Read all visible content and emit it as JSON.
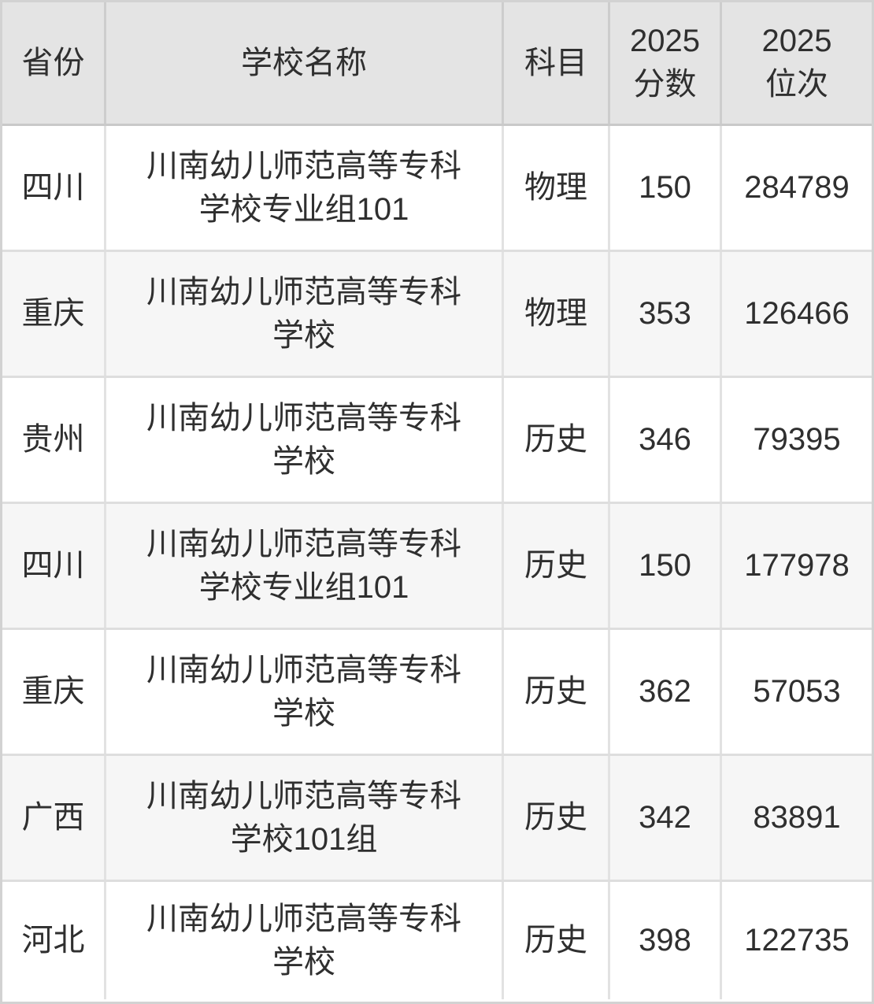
{
  "chart_data": {
    "type": "table",
    "title": "",
    "columns": [
      "省份",
      "学校名称",
      "科目",
      "2025\n分数",
      "2025\n位次"
    ],
    "rows": [
      [
        "四川",
        "川南幼儿师范高等专科\n学校专业组101",
        "物理",
        150,
        284789
      ],
      [
        "重庆",
        "川南幼儿师范高等专科\n学校",
        "物理",
        353,
        126466
      ],
      [
        "贵州",
        "川南幼儿师范高等专科\n学校",
        "历史",
        346,
        79395
      ],
      [
        "四川",
        "川南幼儿师范高等专科\n学校专业组101",
        "历史",
        150,
        177978
      ],
      [
        "重庆",
        "川南幼儿师范高等专科\n学校",
        "历史",
        362,
        57053
      ],
      [
        "广西",
        "川南幼儿师范高等专科\n学校101组",
        "历史",
        342,
        83891
      ],
      [
        "河北",
        "川南幼儿师范高等专科\n学校",
        "历史",
        398,
        122735
      ]
    ],
    "layout": {
      "header_bg": "#e4e4e4",
      "row_bg_odd": "#ffffff",
      "row_bg_even": "#f6f6f6",
      "grid_color": "#dedede",
      "header_grid_color": "#cdcdcd",
      "text_color": "#2f2f2f"
    }
  }
}
